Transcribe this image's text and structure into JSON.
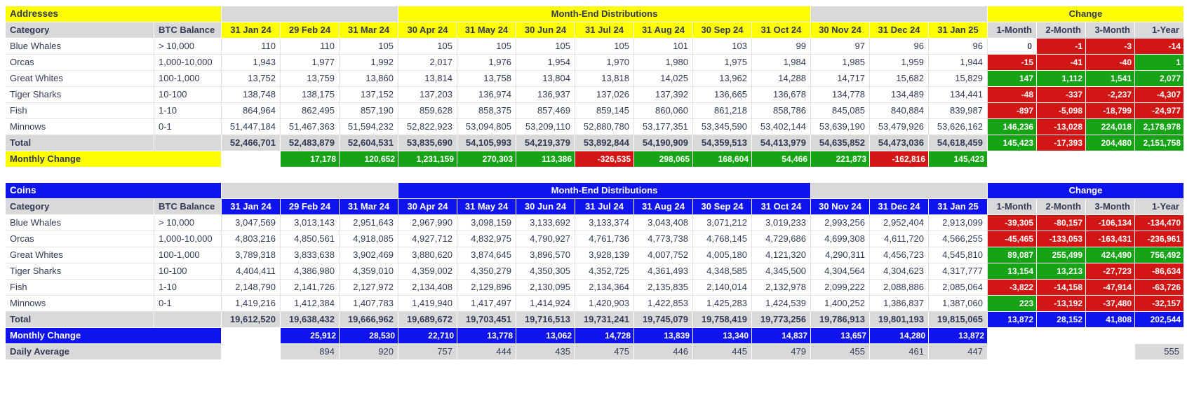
{
  "labels": {
    "distributions": "Month-End Distributions",
    "change": "Change",
    "category": "Category",
    "btc_balance": "BTC Balance",
    "total": "Total",
    "monthly_change": "Monthly Change",
    "daily_average": "Daily Average"
  },
  "months": [
    "31 Jan 24",
    "29 Feb 24",
    "31 Mar 24",
    "30 Apr 24",
    "31 May 24",
    "30 Jun 24",
    "31 Jul 24",
    "31 Aug 24",
    "30 Sep 24",
    "31 Oct 24",
    "30 Nov 24",
    "31 Dec 24",
    "31 Jan 25"
  ],
  "change_columns": [
    "1-Month",
    "2-Month",
    "3-Month",
    "1-Year"
  ],
  "colors": {
    "yellow": "#FFFF00",
    "blue": "#0F14EE",
    "green": "#16A316",
    "red": "#D21515",
    "header_gray": "#D9D9D9",
    "text": "#333A56",
    "grid": "#E2E2E2"
  },
  "chart_data": [
    {
      "type": "table",
      "title": "Addresses",
      "theme": "yellow",
      "change_style": "sign",
      "rows": [
        {
          "category": "Blue Whales",
          "btc_balance": "> 10,000",
          "monthly": [
            110,
            110,
            105,
            105,
            105,
            105,
            105,
            101,
            103,
            99,
            97,
            96,
            96
          ],
          "changes": [
            0,
            -1,
            -3,
            -14
          ]
        },
        {
          "category": "Orcas",
          "btc_balance": "1,000-10,000",
          "monthly": [
            1943,
            1977,
            1992,
            2017,
            1976,
            1954,
            1970,
            1980,
            1975,
            1984,
            1985,
            1959,
            1944
          ],
          "changes": [
            -15,
            -41,
            -40,
            1
          ]
        },
        {
          "category": "Great Whites",
          "btc_balance": "100-1,000",
          "monthly": [
            13752,
            13759,
            13860,
            13814,
            13758,
            13804,
            13818,
            14025,
            13962,
            14288,
            14717,
            15682,
            15829
          ],
          "changes": [
            147,
            1112,
            1541,
            2077
          ]
        },
        {
          "category": "Tiger Sharks",
          "btc_balance": "10-100",
          "monthly": [
            138748,
            138175,
            137152,
            137203,
            136974,
            136937,
            137026,
            137392,
            136665,
            136678,
            134778,
            134489,
            134441
          ],
          "changes": [
            -48,
            -337,
            -2237,
            -4307
          ]
        },
        {
          "category": "Fish",
          "btc_balance": "1-10",
          "monthly": [
            864964,
            862495,
            857190,
            859628,
            858375,
            857469,
            859145,
            860060,
            861218,
            858786,
            845085,
            840884,
            839987
          ],
          "changes": [
            -897,
            -5098,
            -18799,
            -24977
          ]
        },
        {
          "category": "Minnows",
          "btc_balance": "0-1",
          "monthly": [
            51447184,
            51467363,
            51594232,
            52822923,
            53094805,
            53209110,
            52880780,
            53177351,
            53345590,
            53402144,
            53639190,
            53479926,
            53626162
          ],
          "changes": [
            146236,
            -13028,
            224018,
            2178978
          ]
        }
      ],
      "total": {
        "monthly": [
          52466701,
          52483879,
          52604531,
          53835690,
          54105993,
          54219379,
          53892844,
          54190909,
          54359513,
          54413979,
          54635852,
          54473036,
          54618459
        ],
        "changes": [
          145423,
          -17393,
          204480,
          2151758
        ]
      },
      "monthly_change": [
        null,
        17178,
        120652,
        1231159,
        270303,
        113386,
        -326535,
        298065,
        168604,
        54466,
        221873,
        -162816,
        145423
      ]
    },
    {
      "type": "table",
      "title": "Coins",
      "theme": "blue",
      "change_style": "accent",
      "rows": [
        {
          "category": "Blue Whales",
          "btc_balance": "> 10,000",
          "monthly": [
            3047569,
            3013143,
            2951643,
            2967990,
            3098159,
            3133692,
            3133374,
            3043408,
            3071212,
            3019233,
            2993256,
            2952404,
            2913099
          ],
          "changes": [
            -39305,
            -80157,
            -106134,
            -134470
          ]
        },
        {
          "category": "Orcas",
          "btc_balance": "1,000-10,000",
          "monthly": [
            4803216,
            4850561,
            4918085,
            4927712,
            4832975,
            4790927,
            4761736,
            4773738,
            4768145,
            4729686,
            4699308,
            4611720,
            4566255
          ],
          "changes": [
            -45465,
            -133053,
            -163431,
            -236961
          ]
        },
        {
          "category": "Great Whites",
          "btc_balance": "100-1,000",
          "monthly": [
            3789318,
            3833638,
            3902469,
            3880620,
            3874645,
            3896570,
            3928139,
            4007752,
            4005180,
            4121320,
            4290311,
            4456723,
            4545810
          ],
          "changes": [
            89087,
            255499,
            424490,
            756492
          ]
        },
        {
          "category": "Tiger Sharks",
          "btc_balance": "10-100",
          "monthly": [
            4404411,
            4386980,
            4359010,
            4359002,
            4350279,
            4350305,
            4352725,
            4361493,
            4348585,
            4345500,
            4304564,
            4304623,
            4317777
          ],
          "changes": [
            13154,
            13213,
            -27723,
            -86634
          ]
        },
        {
          "category": "Fish",
          "btc_balance": "1-10",
          "monthly": [
            2148790,
            2141726,
            2127972,
            2134408,
            2129896,
            2130095,
            2134364,
            2135835,
            2140014,
            2132978,
            2099222,
            2088886,
            2085064
          ],
          "changes": [
            -3822,
            -14158,
            -47914,
            -63726
          ]
        },
        {
          "category": "Minnows",
          "btc_balance": "0-1",
          "monthly": [
            1419216,
            1412384,
            1407783,
            1419940,
            1417497,
            1414924,
            1420903,
            1422853,
            1425283,
            1424539,
            1400252,
            1386837,
            1387060
          ],
          "changes": [
            223,
            -13192,
            -37480,
            -32157
          ]
        }
      ],
      "total": {
        "monthly": [
          19612520,
          19638432,
          19666962,
          19689672,
          19703451,
          19716513,
          19731241,
          19745079,
          19758419,
          19773256,
          19786913,
          19801193,
          19815065
        ],
        "changes": [
          13872,
          28152,
          41808,
          202544
        ]
      },
      "monthly_change": [
        null,
        25912,
        28530,
        22710,
        13778,
        13062,
        14728,
        13839,
        13340,
        14837,
        13657,
        14280,
        13872
      ],
      "daily_average": [
        null,
        894,
        920,
        757,
        444,
        435,
        475,
        446,
        445,
        479,
        455,
        461,
        447
      ],
      "daily_average_year": 555
    }
  ]
}
